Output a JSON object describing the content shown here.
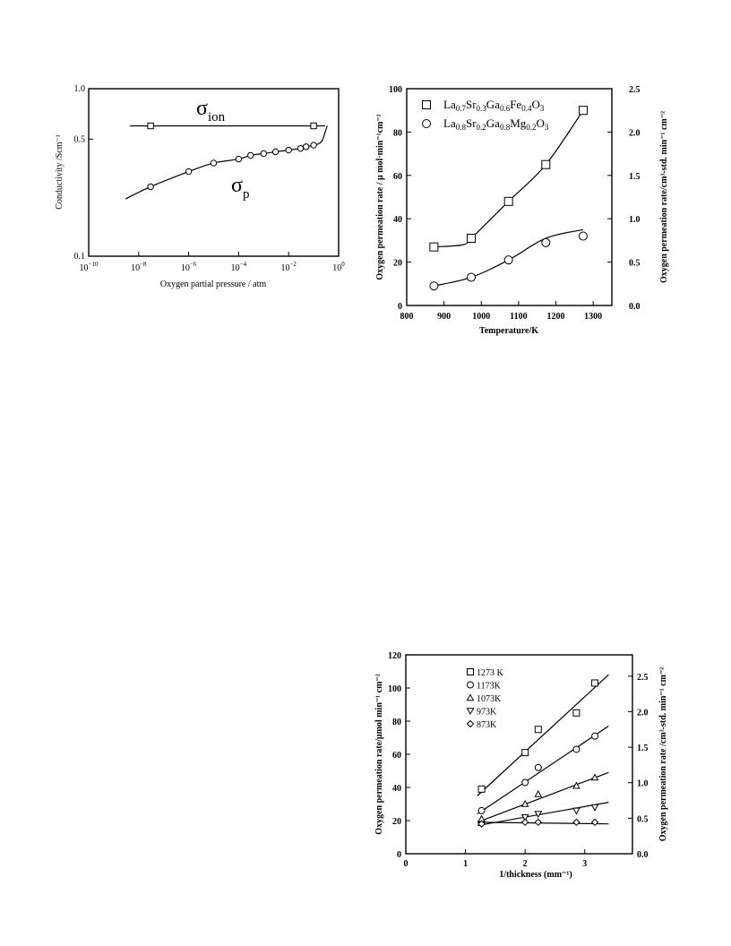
{
  "chart_data": [
    {
      "type": "line",
      "xlabel": "Oxygen partial pressure / atm",
      "ylabel": "Conductivity /Scm⁻¹",
      "x_scale": "log",
      "y_scale": "log",
      "xlim": [
        1e-10,
        1
      ],
      "ylim": [
        0.1,
        1.0
      ],
      "x_ticks": [
        -10,
        -8,
        -6,
        -4,
        -2,
        0
      ],
      "y_tick_labels": [
        "1.0",
        "0.5",
        "0.1"
      ],
      "series": [
        {
          "name": "σion",
          "x": [
            3e-08,
            0.1
          ],
          "y": [
            0.6,
            0.6
          ]
        },
        {
          "name": "σp",
          "x": [
            3e-08,
            1e-06,
            1e-05,
            0.0001,
            0.0003,
            0.001,
            0.003,
            0.01,
            0.03,
            0.05,
            0.1,
            0.2
          ],
          "y": [
            0.26,
            0.32,
            0.36,
            0.38,
            0.4,
            0.41,
            0.42,
            0.43,
            0.44,
            0.45,
            0.46,
            0.48
          ]
        }
      ],
      "annotations": {
        "ion_main": "σ",
        "ion_sub": "ion",
        "p_main": "σ",
        "p_sub": "p"
      }
    },
    {
      "type": "line",
      "xlabel": "Temperature/K",
      "ylabel": "Oxygen permeation rate /  μ mol·min⁻¹cm⁻²",
      "ylabel_right": "Oxygen permeation rate/cm³-std. min⁻¹ cm⁻²",
      "xlim": [
        800,
        1350
      ],
      "ylim": [
        0,
        100
      ],
      "ylim_right": [
        0,
        2.5
      ],
      "x_ticks": [
        800,
        900,
        1000,
        1100,
        1200,
        1300
      ],
      "y_ticks": [
        0,
        20,
        40,
        60,
        80,
        100
      ],
      "y_ticks_right": [
        "0.0",
        "0.5",
        "1.0",
        "1.5",
        "2.0",
        "2.5"
      ],
      "legend_position": "top-left",
      "series": [
        {
          "name": "La0.7Sr0.3Ga0.6Fe0.4O3",
          "marker": "square",
          "legend": {
            "base": "La",
            "s1": "0.7",
            "t1": "Sr",
            "s2": "0.3",
            "t2": "Ga",
            "s3": "0.6",
            "t3": "Fe",
            "s4": "0.4",
            "t4": "O",
            "s5": "3"
          },
          "x": [
            873,
            973,
            1073,
            1173,
            1273
          ],
          "y": [
            27,
            31,
            48,
            65,
            90
          ]
        },
        {
          "name": "La0.8Sr0.2Ga0.8Mg0.2O3",
          "marker": "circle",
          "legend": {
            "base": "La",
            "s1": "0.8",
            "t1": "Sr",
            "s2": "0.2",
            "t2": "Ga",
            "s3": "0.8",
            "t3": "Mg",
            "s4": "0.2",
            "t4": "O",
            "s5": "3"
          },
          "x": [
            873,
            973,
            1073,
            1173,
            1273
          ],
          "y": [
            9,
            13,
            21,
            29,
            32
          ]
        }
      ]
    },
    {
      "type": "scatter",
      "xlabel": "1/thickness     (mm⁻¹)",
      "ylabel": "Oxygen permeation rate/μmol min⁻¹ cm⁻²",
      "ylabel_right": "Oxygen permeation rate  /cm³-std. min⁻¹ cm⁻²",
      "xlim": [
        0,
        3.8
      ],
      "ylim": [
        0,
        120
      ],
      "ylim_right": [
        0,
        2.8
      ],
      "x_ticks": [
        0,
        1,
        2,
        3
      ],
      "y_ticks": [
        0,
        20,
        40,
        60,
        80,
        100,
        120
      ],
      "y_ticks_right": [
        "0.0",
        "0.5",
        "1.0",
        "1.5",
        "2.0",
        "2.5"
      ],
      "legend_position": "top-left",
      "series": [
        {
          "name": "1273 K",
          "marker": "square",
          "x": [
            1.27,
            2.0,
            2.22,
            2.86,
            3.17
          ],
          "y": [
            39,
            61,
            75,
            85,
            103
          ],
          "fit": [
            [
              1.2,
              35
            ],
            [
              3.4,
              108
            ]
          ]
        },
        {
          "name": "1173K",
          "marker": "circle",
          "x": [
            1.27,
            2.0,
            2.22,
            2.86,
            3.17
          ],
          "y": [
            26,
            43,
            52,
            63,
            71
          ],
          "fit": [
            [
              1.2,
              24
            ],
            [
              3.4,
              77
            ]
          ]
        },
        {
          "name": "1073K",
          "marker": "triangle-up",
          "x": [
            1.27,
            2.0,
            2.22,
            2.86,
            3.17
          ],
          "y": [
            21,
            30,
            36,
            41,
            46
          ],
          "fit": [
            [
              1.2,
              19
            ],
            [
              3.4,
              49
            ]
          ]
        },
        {
          "name": "973K",
          "marker": "triangle-down",
          "x": [
            1.27,
            2.0,
            2.22,
            2.86,
            3.17
          ],
          "y": [
            18,
            22,
            24,
            26,
            28
          ],
          "fit": [
            [
              1.2,
              17
            ],
            [
              3.4,
              31
            ]
          ]
        },
        {
          "name": "873K",
          "marker": "diamond",
          "x": [
            1.27,
            2.0,
            2.22,
            2.86,
            3.17
          ],
          "y": [
            18,
            19,
            19,
            19,
            19
          ],
          "fit": [
            [
              1.2,
              19
            ],
            [
              3.4,
              18
            ]
          ]
        }
      ]
    }
  ]
}
